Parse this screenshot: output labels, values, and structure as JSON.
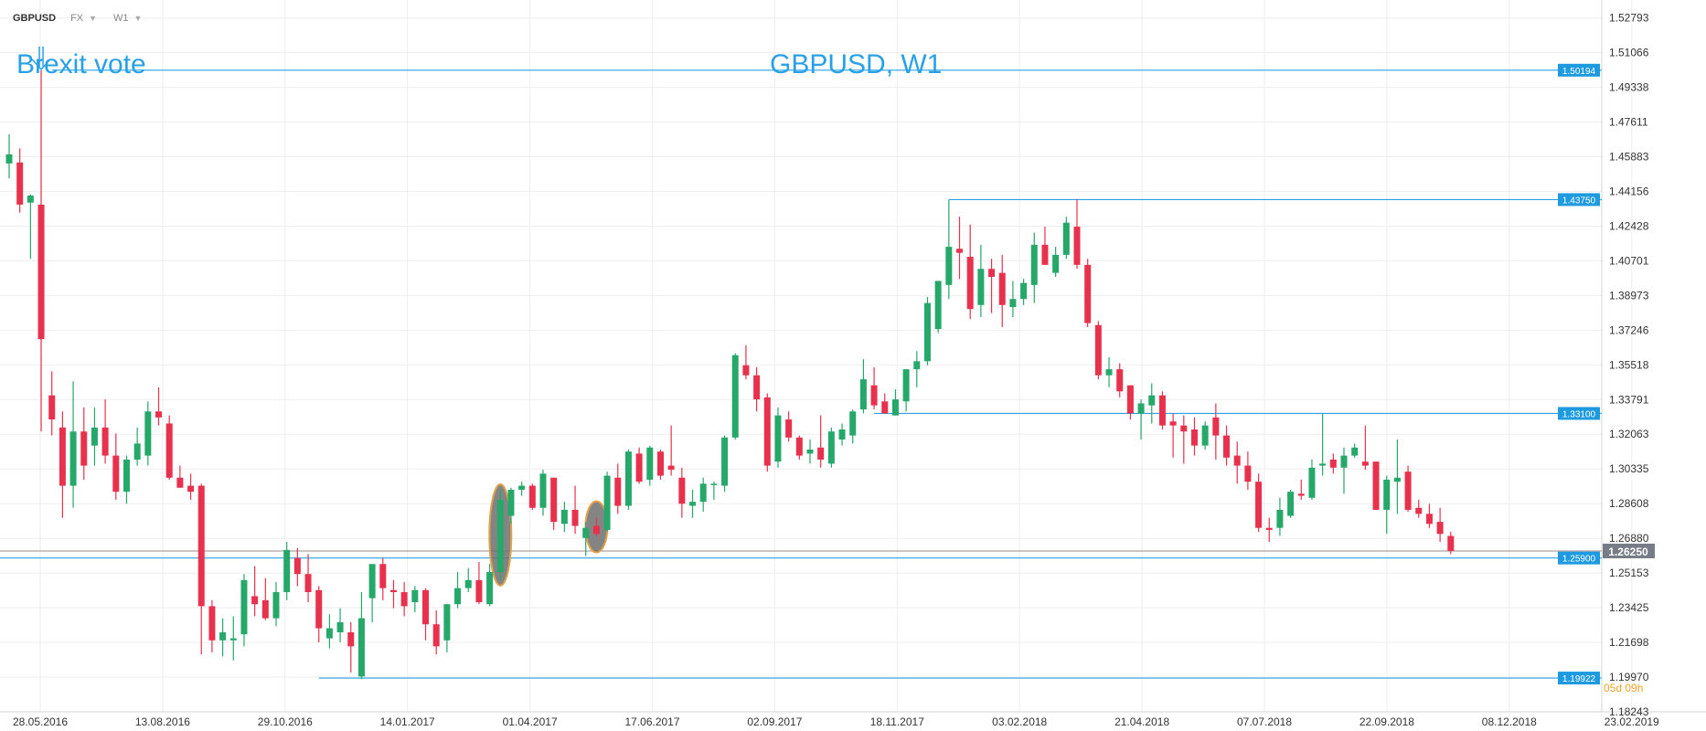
{
  "toolbar": {
    "symbol": "GBPUSD",
    "market": "FX",
    "interval": "W1"
  },
  "colors": {
    "bull": "#26a86a",
    "bear": "#e8314c",
    "level_line": "#2aa1e6",
    "level_label_bg": "#1e9be0",
    "price_line": "#9c8a8a",
    "price_label_bg": "#767d86",
    "annotation_text": "#2aa1e6",
    "timer_text": "#f2a32f",
    "grid": "#eeeeee",
    "axis_text": "#333333",
    "highlight_fill": "#6e6e6e",
    "highlight_stroke": "#e0a24a"
  },
  "chart_data": {
    "type": "candlestick",
    "title": "GBPUSD, W1",
    "interval": "W1",
    "ylim": [
      1.1824,
      1.5369
    ],
    "y_ticks": [
      "1.52793",
      "1.51066",
      "1.49338",
      "1.47611",
      "1.45883",
      "1.44156",
      "1.42428",
      "1.40701",
      "1.38973",
      "1.37246",
      "1.35518",
      "1.33791",
      "1.32063",
      "1.30335",
      "1.28608",
      "1.26880",
      "1.25153",
      "1.23425",
      "1.21698",
      "1.19970",
      "1.18243"
    ],
    "x_ticks": [
      "28.05.2016",
      "13.08.2016",
      "29.10.2016",
      "14.01.2017",
      "01.04.2017",
      "17.06.2017",
      "02.09.2017",
      "18.11.2017",
      "03.02.2018",
      "21.04.2018",
      "07.07.2018",
      "22.09.2018",
      "08.12.2018",
      "23.02.2019"
    ],
    "candles": [
      {
        "o": 1.4555,
        "h": 1.47,
        "l": 1.448,
        "c": 1.46
      },
      {
        "o": 1.456,
        "h": 1.463,
        "l": 1.431,
        "c": 1.435
      },
      {
        "o": 1.436,
        "h": 1.44,
        "l": 1.408,
        "c": 1.4395
      },
      {
        "o": 1.435,
        "h": 1.5019,
        "l": 1.322,
        "c": 1.368
      },
      {
        "o": 1.34,
        "h": 1.352,
        "l": 1.32,
        "c": 1.328
      },
      {
        "o": 1.324,
        "h": 1.332,
        "l": 1.279,
        "c": 1.295
      },
      {
        "o": 1.295,
        "h": 1.347,
        "l": 1.284,
        "c": 1.322
      },
      {
        "o": 1.322,
        "h": 1.334,
        "l": 1.298,
        "c": 1.305
      },
      {
        "o": 1.315,
        "h": 1.334,
        "l": 1.305,
        "c": 1.324
      },
      {
        "o": 1.324,
        "h": 1.338,
        "l": 1.306,
        "c": 1.31
      },
      {
        "o": 1.31,
        "h": 1.321,
        "l": 1.288,
        "c": 1.292
      },
      {
        "o": 1.292,
        "h": 1.31,
        "l": 1.286,
        "c": 1.308
      },
      {
        "o": 1.308,
        "h": 1.324,
        "l": 1.305,
        "c": 1.316
      },
      {
        "o": 1.31,
        "h": 1.337,
        "l": 1.305,
        "c": 1.332
      },
      {
        "o": 1.332,
        "h": 1.344,
        "l": 1.325,
        "c": 1.329
      },
      {
        "o": 1.326,
        "h": 1.33,
        "l": 1.298,
        "c": 1.299
      },
      {
        "o": 1.299,
        "h": 1.305,
        "l": 1.294,
        "c": 1.294
      },
      {
        "o": 1.295,
        "h": 1.301,
        "l": 1.288,
        "c": 1.292
      },
      {
        "o": 1.295,
        "h": 1.296,
        "l": 1.211,
        "c": 1.235
      },
      {
        "o": 1.235,
        "h": 1.238,
        "l": 1.212,
        "c": 1.218
      },
      {
        "o": 1.218,
        "h": 1.229,
        "l": 1.21,
        "c": 1.222
      },
      {
        "o": 1.218,
        "h": 1.23,
        "l": 1.208,
        "c": 1.219
      },
      {
        "o": 1.221,
        "h": 1.251,
        "l": 1.215,
        "c": 1.248
      },
      {
        "o": 1.24,
        "h": 1.255,
        "l": 1.23,
        "c": 1.236
      },
      {
        "o": 1.238,
        "h": 1.249,
        "l": 1.228,
        "c": 1.229
      },
      {
        "o": 1.229,
        "h": 1.247,
        "l": 1.225,
        "c": 1.242
      },
      {
        "o": 1.242,
        "h": 1.267,
        "l": 1.238,
        "c": 1.263
      },
      {
        "o": 1.259,
        "h": 1.264,
        "l": 1.245,
        "c": 1.251
      },
      {
        "o": 1.251,
        "h": 1.261,
        "l": 1.237,
        "c": 1.242
      },
      {
        "o": 1.243,
        "h": 1.245,
        "l": 1.217,
        "c": 1.224
      },
      {
        "o": 1.219,
        "h": 1.231,
        "l": 1.214,
        "c": 1.224
      },
      {
        "o": 1.222,
        "h": 1.234,
        "l": 1.217,
        "c": 1.227
      },
      {
        "o": 1.222,
        "h": 1.227,
        "l": 1.202,
        "c": 1.215
      },
      {
        "o": 1.2,
        "h": 1.242,
        "l": 1.1986,
        "c": 1.229
      },
      {
        "o": 1.239,
        "h": 1.253,
        "l": 1.227,
        "c": 1.256
      },
      {
        "o": 1.256,
        "h": 1.259,
        "l": 1.238,
        "c": 1.244
      },
      {
        "o": 1.243,
        "h": 1.248,
        "l": 1.234,
        "c": 1.242
      },
      {
        "o": 1.242,
        "h": 1.247,
        "l": 1.23,
        "c": 1.235
      },
      {
        "o": 1.237,
        "h": 1.245,
        "l": 1.232,
        "c": 1.243
      },
      {
        "o": 1.243,
        "h": 1.244,
        "l": 1.218,
        "c": 1.226
      },
      {
        "o": 1.226,
        "h": 1.233,
        "l": 1.211,
        "c": 1.215
      },
      {
        "o": 1.218,
        "h": 1.236,
        "l": 1.212,
        "c": 1.236
      },
      {
        "o": 1.236,
        "h": 1.252,
        "l": 1.234,
        "c": 1.244
      },
      {
        "o": 1.244,
        "h": 1.254,
        "l": 1.242,
        "c": 1.248
      },
      {
        "o": 1.248,
        "h": 1.257,
        "l": 1.236,
        "c": 1.237
      },
      {
        "o": 1.236,
        "h": 1.256,
        "l": 1.235,
        "c": 1.252
      },
      {
        "o": 1.252,
        "h": 1.293,
        "l": 1.248,
        "c": 1.288
      },
      {
        "o": 1.28,
        "h": 1.294,
        "l": 1.276,
        "c": 1.293
      },
      {
        "o": 1.293,
        "h": 1.297,
        "l": 1.29,
        "c": 1.295
      },
      {
        "o": 1.295,
        "h": 1.296,
        "l": 1.283,
        "c": 1.284
      },
      {
        "o": 1.284,
        "h": 1.303,
        "l": 1.28,
        "c": 1.301
      },
      {
        "o": 1.299,
        "h": 1.299,
        "l": 1.273,
        "c": 1.277
      },
      {
        "o": 1.276,
        "h": 1.287,
        "l": 1.272,
        "c": 1.283
      },
      {
        "o": 1.283,
        "h": 1.295,
        "l": 1.271,
        "c": 1.275
      },
      {
        "o": 1.269,
        "h": 1.277,
        "l": 1.26,
        "c": 1.274
      },
      {
        "o": 1.275,
        "h": 1.279,
        "l": 1.27,
        "c": 1.271
      },
      {
        "o": 1.273,
        "h": 1.302,
        "l": 1.272,
        "c": 1.3
      },
      {
        "o": 1.299,
        "h": 1.306,
        "l": 1.281,
        "c": 1.285
      },
      {
        "o": 1.285,
        "h": 1.313,
        "l": 1.283,
        "c": 1.312
      },
      {
        "o": 1.311,
        "h": 1.314,
        "l": 1.296,
        "c": 1.297
      },
      {
        "o": 1.298,
        "h": 1.315,
        "l": 1.295,
        "c": 1.314
      },
      {
        "o": 1.312,
        "h": 1.313,
        "l": 1.298,
        "c": 1.3
      },
      {
        "o": 1.305,
        "h": 1.325,
        "l": 1.3,
        "c": 1.303
      },
      {
        "o": 1.299,
        "h": 1.304,
        "l": 1.279,
        "c": 1.286
      },
      {
        "o": 1.285,
        "h": 1.293,
        "l": 1.279,
        "c": 1.287
      },
      {
        "o": 1.287,
        "h": 1.299,
        "l": 1.282,
        "c": 1.296
      },
      {
        "o": 1.296,
        "h": 1.297,
        "l": 1.288,
        "c": 1.296
      },
      {
        "o": 1.295,
        "h": 1.32,
        "l": 1.292,
        "c": 1.319
      },
      {
        "o": 1.319,
        "h": 1.361,
        "l": 1.318,
        "c": 1.36
      },
      {
        "o": 1.355,
        "h": 1.365,
        "l": 1.348,
        "c": 1.35
      },
      {
        "o": 1.35,
        "h": 1.354,
        "l": 1.332,
        "c": 1.338
      },
      {
        "o": 1.339,
        "h": 1.341,
        "l": 1.302,
        "c": 1.305
      },
      {
        "o": 1.307,
        "h": 1.334,
        "l": 1.304,
        "c": 1.33
      },
      {
        "o": 1.328,
        "h": 1.332,
        "l": 1.317,
        "c": 1.319
      },
      {
        "o": 1.319,
        "h": 1.32,
        "l": 1.308,
        "c": 1.31
      },
      {
        "o": 1.311,
        "h": 1.318,
        "l": 1.306,
        "c": 1.313
      },
      {
        "o": 1.314,
        "h": 1.33,
        "l": 1.304,
        "c": 1.308
      },
      {
        "o": 1.306,
        "h": 1.324,
        "l": 1.304,
        "c": 1.322
      },
      {
        "o": 1.318,
        "h": 1.326,
        "l": 1.315,
        "c": 1.323
      },
      {
        "o": 1.32,
        "h": 1.333,
        "l": 1.316,
        "c": 1.332
      },
      {
        "o": 1.333,
        "h": 1.358,
        "l": 1.331,
        "c": 1.348
      },
      {
        "o": 1.345,
        "h": 1.354,
        "l": 1.333,
        "c": 1.335
      },
      {
        "o": 1.337,
        "h": 1.341,
        "l": 1.331,
        "c": 1.331
      },
      {
        "o": 1.33,
        "h": 1.343,
        "l": 1.33,
        "c": 1.338
      },
      {
        "o": 1.337,
        "h": 1.351,
        "l": 1.332,
        "c": 1.353
      },
      {
        "o": 1.353,
        "h": 1.362,
        "l": 1.344,
        "c": 1.357
      },
      {
        "o": 1.357,
        "h": 1.389,
        "l": 1.355,
        "c": 1.386
      },
      {
        "o": 1.373,
        "h": 1.395,
        "l": 1.371,
        "c": 1.397
      },
      {
        "o": 1.395,
        "h": 1.4375,
        "l": 1.388,
        "c": 1.414
      },
      {
        "o": 1.413,
        "h": 1.429,
        "l": 1.398,
        "c": 1.411
      },
      {
        "o": 1.409,
        "h": 1.425,
        "l": 1.378,
        "c": 1.383
      },
      {
        "o": 1.385,
        "h": 1.415,
        "l": 1.379,
        "c": 1.403
      },
      {
        "o": 1.403,
        "h": 1.408,
        "l": 1.381,
        "c": 1.399
      },
      {
        "o": 1.401,
        "h": 1.41,
        "l": 1.374,
        "c": 1.385
      },
      {
        "o": 1.384,
        "h": 1.397,
        "l": 1.379,
        "c": 1.388
      },
      {
        "o": 1.388,
        "h": 1.398,
        "l": 1.385,
        "c": 1.396
      },
      {
        "o": 1.395,
        "h": 1.421,
        "l": 1.386,
        "c": 1.415
      },
      {
        "o": 1.415,
        "h": 1.424,
        "l": 1.405,
        "c": 1.405
      },
      {
        "o": 1.401,
        "h": 1.414,
        "l": 1.399,
        "c": 1.41
      },
      {
        "o": 1.41,
        "h": 1.429,
        "l": 1.408,
        "c": 1.426
      },
      {
        "o": 1.424,
        "h": 1.4376,
        "l": 1.403,
        "c": 1.405
      },
      {
        "o": 1.405,
        "h": 1.408,
        "l": 1.374,
        "c": 1.376
      },
      {
        "o": 1.375,
        "h": 1.377,
        "l": 1.348,
        "c": 1.35
      },
      {
        "o": 1.35,
        "h": 1.359,
        "l": 1.344,
        "c": 1.353
      },
      {
        "o": 1.353,
        "h": 1.356,
        "l": 1.339,
        "c": 1.342
      },
      {
        "o": 1.345,
        "h": 1.345,
        "l": 1.328,
        "c": 1.331
      },
      {
        "o": 1.331,
        "h": 1.338,
        "l": 1.318,
        "c": 1.336
      },
      {
        "o": 1.335,
        "h": 1.346,
        "l": 1.326,
        "c": 1.34
      },
      {
        "o": 1.34,
        "h": 1.342,
        "l": 1.323,
        "c": 1.325
      },
      {
        "o": 1.327,
        "h": 1.331,
        "l": 1.309,
        "c": 1.325
      },
      {
        "o": 1.325,
        "h": 1.33,
        "l": 1.306,
        "c": 1.322
      },
      {
        "o": 1.323,
        "h": 1.329,
        "l": 1.31,
        "c": 1.315
      },
      {
        "o": 1.315,
        "h": 1.327,
        "l": 1.313,
        "c": 1.325
      },
      {
        "o": 1.329,
        "h": 1.336,
        "l": 1.308,
        "c": 1.32
      },
      {
        "o": 1.32,
        "h": 1.325,
        "l": 1.305,
        "c": 1.309
      },
      {
        "o": 1.31,
        "h": 1.317,
        "l": 1.296,
        "c": 1.305
      },
      {
        "o": 1.305,
        "h": 1.312,
        "l": 1.293,
        "c": 1.297
      },
      {
        "o": 1.297,
        "h": 1.301,
        "l": 1.272,
        "c": 1.274
      },
      {
        "o": 1.274,
        "h": 1.279,
        "l": 1.267,
        "c": 1.273
      },
      {
        "o": 1.274,
        "h": 1.289,
        "l": 1.27,
        "c": 1.283
      },
      {
        "o": 1.28,
        "h": 1.293,
        "l": 1.279,
        "c": 1.292
      },
      {
        "o": 1.291,
        "h": 1.298,
        "l": 1.288,
        "c": 1.29
      },
      {
        "o": 1.289,
        "h": 1.308,
        "l": 1.288,
        "c": 1.304
      },
      {
        "o": 1.305,
        "h": 1.331,
        "l": 1.3,
        "c": 1.306
      },
      {
        "o": 1.308,
        "h": 1.311,
        "l": 1.301,
        "c": 1.304
      },
      {
        "o": 1.304,
        "h": 1.314,
        "l": 1.291,
        "c": 1.31
      },
      {
        "o": 1.31,
        "h": 1.316,
        "l": 1.309,
        "c": 1.314
      },
      {
        "o": 1.307,
        "h": 1.325,
        "l": 1.303,
        "c": 1.305
      },
      {
        "o": 1.307,
        "h": 1.307,
        "l": 1.283,
        "c": 1.283
      },
      {
        "o": 1.283,
        "h": 1.3,
        "l": 1.271,
        "c": 1.298
      },
      {
        "o": 1.297,
        "h": 1.318,
        "l": 1.281,
        "c": 1.299
      },
      {
        "o": 1.302,
        "h": 1.305,
        "l": 1.282,
        "c": 1.283
      },
      {
        "o": 1.284,
        "h": 1.288,
        "l": 1.279,
        "c": 1.281
      },
      {
        "o": 1.281,
        "h": 1.286,
        "l": 1.274,
        "c": 1.276
      },
      {
        "o": 1.277,
        "h": 1.284,
        "l": 1.267,
        "c": 1.271
      },
      {
        "o": 1.27,
        "h": 1.272,
        "l": 1.261,
        "c": 1.2625
      }
    ],
    "levels": [
      {
        "value": 1.50194,
        "label": "1.50194",
        "from_index": 4
      },
      {
        "value": 1.4375,
        "label": "1.43750",
        "from_index": 88
      },
      {
        "value": 1.331,
        "label": "1.33100",
        "from_index": 81
      },
      {
        "value": 1.259,
        "label": "1.25900",
        "from_index": 0
      },
      {
        "value": 1.19922,
        "label": "1.19922",
        "from_index": 29
      }
    ],
    "current_price": {
      "value": 1.2625,
      "label": "1.26250"
    },
    "highlighted_candles": [
      46,
      55
    ],
    "annotations": {
      "event_label": "Brexit vote",
      "event_index": 3,
      "timer": "05d 09h"
    }
  }
}
